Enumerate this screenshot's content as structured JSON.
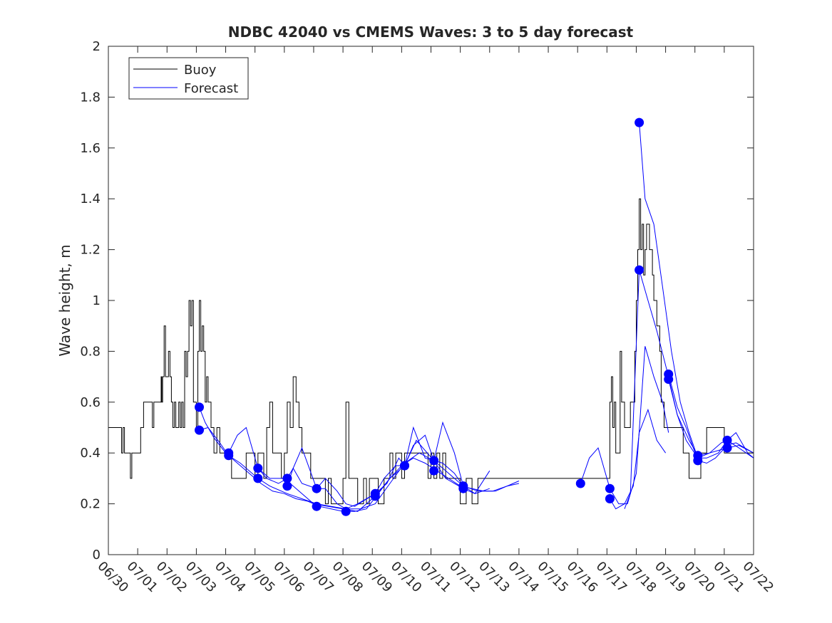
{
  "chart_data": {
    "type": "line",
    "title": "NDBC 42040 vs CMEMS Waves: 3 to 5 day forecast",
    "xlabel": "",
    "ylabel": "Wave height, m",
    "xlim": [
      "06/30",
      "07/22"
    ],
    "ylim": [
      0,
      2
    ],
    "x_tick_labels": [
      "06/30",
      "07/01",
      "07/02",
      "07/03",
      "07/04",
      "07/05",
      "07/06",
      "07/07",
      "07/08",
      "07/09",
      "07/10",
      "07/11",
      "07/12",
      "07/13",
      "07/14",
      "07/15",
      "07/16",
      "07/17",
      "07/18",
      "07/19",
      "07/20",
      "07/21",
      "07/22"
    ],
    "y_tick_labels": [
      "0",
      "0.2",
      "0.4",
      "0.6",
      "0.8",
      "1",
      "1.2",
      "1.4",
      "1.6",
      "1.8",
      "2"
    ],
    "y_ticks": [
      0,
      0.2,
      0.4,
      0.6,
      0.8,
      1,
      1.2,
      1.4,
      1.6,
      1.8,
      2
    ],
    "grid": false,
    "legend": {
      "placement": "top-left",
      "entries": [
        {
          "label": "Buoy",
          "color": "#000000"
        },
        {
          "label": "Forecast",
          "color": "#0000ff"
        }
      ]
    },
    "colors": {
      "buoy": "#000000",
      "forecast": "#0000ff",
      "axis": "#262626"
    },
    "x_unit": "days since 06/30 00:00 (x axis ticks at daily dates)",
    "series": [
      {
        "name": "Buoy",
        "color": "#000000",
        "x": [
          0,
          0.4,
          0.45,
          0.5,
          0.55,
          0.6,
          0.7,
          0.75,
          0.8,
          1.0,
          1.1,
          1.2,
          1.3,
          1.4,
          1.5,
          1.55,
          1.6,
          1.65,
          1.7,
          1.8,
          1.82,
          1.85,
          1.9,
          1.95,
          2.0,
          2.05,
          2.1,
          2.15,
          2.2,
          2.25,
          2.3,
          2.4,
          2.45,
          2.5,
          2.55,
          2.6,
          2.65,
          2.7,
          2.75,
          2.8,
          2.85,
          2.9,
          2.95,
          3.0,
          3.05,
          3.1,
          3.15,
          3.2,
          3.25,
          3.3,
          3.35,
          3.4,
          3.5,
          3.6,
          3.7,
          3.8,
          3.9,
          4.0,
          4.2,
          4.4,
          4.5,
          4.6,
          4.7,
          5.0,
          5.1,
          5.2,
          5.3,
          5.4,
          5.5,
          5.6,
          5.7,
          5.8,
          5.9,
          6.0,
          6.1,
          6.2,
          6.3,
          6.4,
          6.5,
          6.6,
          6.7,
          6.8,
          6.9,
          7.0,
          7.1,
          7.2,
          7.3,
          7.4,
          7.5,
          7.6,
          7.7,
          7.8,
          7.9,
          8.0,
          8.1,
          8.2,
          8.3,
          8.4,
          8.5,
          8.6,
          8.7,
          8.8,
          8.9,
          9.0,
          9.1,
          9.2,
          9.3,
          9.4,
          9.5,
          9.6,
          9.7,
          9.8,
          9.9,
          10.0,
          10.1,
          10.2,
          10.3,
          10.4,
          10.5,
          10.6,
          10.7,
          10.8,
          10.9,
          11.0,
          11.1,
          11.2,
          11.3,
          11.4,
          11.5,
          11.6,
          11.7,
          11.8,
          11.9,
          12.0,
          12.2,
          12.4,
          12.6,
          12.8,
          13.0,
          13.2,
          13.4,
          13.6,
          13.8,
          14.0,
          14.2,
          14.4,
          14.6,
          14.8,
          15.0,
          15.2,
          15.4,
          15.6,
          15.8,
          16.0,
          16.2,
          16.4,
          16.6,
          16.8,
          17.0,
          17.05,
          17.1,
          17.15,
          17.2,
          17.25,
          17.3,
          17.35,
          17.4,
          17.45,
          17.5,
          17.6,
          17.7,
          17.8,
          17.85,
          17.9,
          17.95,
          18.0,
          18.05,
          18.1,
          18.15,
          18.2,
          18.25,
          18.3,
          18.35,
          18.4,
          18.45,
          18.5,
          18.55,
          18.6,
          18.65,
          18.7,
          18.75,
          18.8,
          18.85,
          18.9,
          18.95,
          19.0,
          19.2,
          19.4,
          19.6,
          19.8,
          20.0,
          20.2,
          20.4,
          20.6,
          20.8,
          21.0,
          21.2,
          21.4,
          21.6,
          21.8,
          22.0
        ],
        "y": [
          0.5,
          0.5,
          0.4,
          0.5,
          0.4,
          0.4,
          0.4,
          0.3,
          0.4,
          0.4,
          0.5,
          0.6,
          0.6,
          0.6,
          0.5,
          0.6,
          0.6,
          0.6,
          0.6,
          0.7,
          0.6,
          0.7,
          0.9,
          0.7,
          0.7,
          0.8,
          0.7,
          0.6,
          0.5,
          0.6,
          0.5,
          0.6,
          0.5,
          0.6,
          0.5,
          0.8,
          0.7,
          0.8,
          1.0,
          0.9,
          1.0,
          0.6,
          0.6,
          0.5,
          0.8,
          1.0,
          0.8,
          0.9,
          0.8,
          0.6,
          0.7,
          0.6,
          0.5,
          0.4,
          0.5,
          0.4,
          0.4,
          0.4,
          0.3,
          0.3,
          0.3,
          0.3,
          0.4,
          0.3,
          0.4,
          0.4,
          0.3,
          0.5,
          0.6,
          0.4,
          0.4,
          0.4,
          0.3,
          0.4,
          0.6,
          0.5,
          0.7,
          0.6,
          0.5,
          0.4,
          0.4,
          0.4,
          0.3,
          0.3,
          0.3,
          0.3,
          0.3,
          0.2,
          0.3,
          0.2,
          0.2,
          0.2,
          0.2,
          0.3,
          0.6,
          0.3,
          0.3,
          0.3,
          0.2,
          0.2,
          0.3,
          0.2,
          0.3,
          0.3,
          0.3,
          0.2,
          0.2,
          0.3,
          0.3,
          0.4,
          0.3,
          0.4,
          0.4,
          0.3,
          0.4,
          0.4,
          0.4,
          0.4,
          0.4,
          0.4,
          0.4,
          0.4,
          0.3,
          0.4,
          0.3,
          0.4,
          0.3,
          0.4,
          0.3,
          0.3,
          0.3,
          0.3,
          0.3,
          0.2,
          0.3,
          0.2,
          0.3,
          0.3,
          0.3,
          0.3,
          0.3,
          0.3,
          0.3,
          0.3,
          0.3,
          0.3,
          0.3,
          0.3,
          0.3,
          0.3,
          0.3,
          0.3,
          0.3,
          0.3,
          0.3,
          0.3,
          0.3,
          0.3,
          0.3,
          0.3,
          0.6,
          0.7,
          0.5,
          0.6,
          0.4,
          0.4,
          0.4,
          0.8,
          0.6,
          0.5,
          0.5,
          0.6,
          0.6,
          0.6,
          0.8,
          1.0,
          1.2,
          1.4,
          1.2,
          1.3,
          1.1,
          1.2,
          1.3,
          1.3,
          1.2,
          1.2,
          1.1,
          1.0,
          1.0,
          0.9,
          0.9,
          0.8,
          0.6,
          0.6,
          0.5,
          0.5,
          0.5,
          0.5,
          0.4,
          0.3,
          0.3,
          0.4,
          0.5,
          0.5,
          0.5,
          0.4,
          0.4,
          0.4,
          0.4,
          0.4,
          0.4
        ]
      },
      {
        "name": "Forecast",
        "color": "#0000ff",
        "runs": [
          {
            "x": [
              3.1,
              3.3,
              3.6,
              4.0,
              4.4,
              4.8,
              5.2,
              5.6,
              6.0,
              6.4,
              6.8,
              7.2,
              7.6,
              8.0,
              8.4,
              8.8,
              9.2,
              9.6,
              10.0,
              10.4,
              10.8,
              11.2,
              11.6,
              12.0,
              12.4,
              12.8,
              13.2,
              13.6,
              14.0
            ],
            "y": [
              0.58,
              0.52,
              0.46,
              0.4,
              0.36,
              0.32,
              0.28,
              0.25,
              0.24,
              0.22,
              0.21,
              0.19,
              0.18,
              0.17,
              0.17,
              0.18,
              0.24,
              0.3,
              0.35,
              0.38,
              0.36,
              0.33,
              0.3,
              0.27,
              0.26,
              0.25,
              0.25,
              0.27,
              0.28
            ]
          },
          {
            "x": [
              3.1,
              3.4,
              3.8,
              4.1,
              4.5,
              5.1,
              5.5,
              6.1,
              6.6,
              7.1,
              7.6,
              8.1,
              8.6,
              9.1,
              9.6,
              10.1,
              10.6,
              11.1,
              11.6,
              12.1,
              12.6,
              13.1,
              13.6,
              14.0
            ],
            "y": [
              0.49,
              0.5,
              0.44,
              0.39,
              0.36,
              0.3,
              0.27,
              0.24,
              0.22,
              0.2,
              0.19,
              0.18,
              0.18,
              0.2,
              0.28,
              0.36,
              0.4,
              0.37,
              0.32,
              0.27,
              0.25,
              0.25,
              0.27,
              0.29
            ]
          },
          {
            "x": [
              4.1,
              4.4,
              4.7,
              5.1,
              5.5,
              6.0,
              6.5,
              7.0,
              7.5,
              8.0,
              8.5,
              9.1,
              9.6,
              10.1,
              10.5,
              11.1,
              11.5,
              12.1,
              12.5,
              13.0
            ],
            "y": [
              0.4,
              0.47,
              0.5,
              0.34,
              0.3,
              0.3,
              0.25,
              0.2,
              0.19,
              0.18,
              0.17,
              0.23,
              0.3,
              0.35,
              0.45,
              0.37,
              0.3,
              0.26,
              0.24,
              0.26
            ]
          },
          {
            "x": [
              5.1,
              5.4,
              5.8,
              6.1,
              6.3,
              6.6,
              7.1,
              7.4,
              7.8,
              8.1,
              8.4,
              9.1,
              9.4,
              9.8,
              10.1,
              10.4,
              10.8,
              11.1,
              11.4,
              11.8,
              12.1,
              12.5,
              13.0
            ],
            "y": [
              0.34,
              0.3,
              0.28,
              0.3,
              0.34,
              0.42,
              0.26,
              0.3,
              0.25,
              0.2,
              0.19,
              0.24,
              0.3,
              0.35,
              0.35,
              0.43,
              0.47,
              0.37,
              0.52,
              0.4,
              0.27,
              0.24,
              0.33
            ]
          },
          {
            "x": [
              6.1,
              6.3,
              6.6,
              7.1,
              7.4,
              7.8,
              8.1,
              8.5,
              9.1,
              9.5,
              9.9,
              10.1,
              10.4,
              10.8,
              11.1,
              11.4,
              11.8,
              12.1
            ],
            "y": [
              0.27,
              0.34,
              0.28,
              0.26,
              0.26,
              0.2,
              0.18,
              0.2,
              0.24,
              0.28,
              0.38,
              0.35,
              0.5,
              0.38,
              0.37,
              0.36,
              0.32,
              0.27
            ]
          },
          {
            "x": [
              16.1,
              16.4,
              16.7,
              17.1,
              17.4,
              17.7,
              18.0,
              18.3,
              18.6,
              18.9,
              19.1
            ],
            "y": [
              0.28,
              0.38,
              0.42,
              0.26,
              0.2,
              0.2,
              0.32,
              0.82,
              0.7,
              0.6,
              0.48
            ]
          },
          {
            "x": [
              17.1,
              17.3,
              17.6,
              17.9,
              18.1,
              18.4,
              18.7,
              19.0
            ],
            "y": [
              0.22,
              0.18,
              0.2,
              0.27,
              0.48,
              0.57,
              0.45,
              0.4
            ]
          },
          {
            "x": [
              17.6,
              17.8,
              18.1,
              18.4,
              18.7,
              19.1,
              19.4,
              19.7,
              20.1,
              20.4,
              20.8,
              21.1,
              21.5,
              22.0
            ],
            "y": [
              0.18,
              0.24,
              1.12,
              1.0,
              0.88,
              0.7,
              0.55,
              0.45,
              0.38,
              0.38,
              0.4,
              0.45,
              0.42,
              0.38
            ]
          },
          {
            "x": [
              18.1,
              18.3,
              18.6,
              18.9,
              19.2,
              19.5,
              19.8,
              20.1,
              20.5,
              20.9,
              21.1,
              21.4,
              21.8,
              22.0
            ],
            "y": [
              1.7,
              1.4,
              1.3,
              1.05,
              0.8,
              0.6,
              0.48,
              0.38,
              0.4,
              0.44,
              0.45,
              0.48,
              0.4,
              0.38
            ]
          },
          {
            "x": [
              19.1,
              19.4,
              19.7,
              20.1,
              20.4,
              20.7,
              21.1,
              21.4,
              21.7,
              22.0
            ],
            "y": [
              0.71,
              0.58,
              0.5,
              0.37,
              0.36,
              0.38,
              0.43,
              0.44,
              0.42,
              0.4
            ]
          },
          {
            "x": [
              19.1,
              19.4,
              19.8,
              20.1,
              20.5,
              20.8,
              21.1,
              21.5,
              22.0
            ],
            "y": [
              0.69,
              0.55,
              0.45,
              0.39,
              0.4,
              0.41,
              0.42,
              0.43,
              0.4
            ]
          }
        ],
        "markers": {
          "x": [
            3.1,
            3.1,
            4.1,
            4.1,
            5.1,
            5.1,
            6.1,
            6.1,
            7.1,
            7.1,
            8.1,
            9.1,
            9.1,
            10.1,
            10.1,
            11.1,
            11.1,
            12.1,
            12.1,
            16.1,
            17.1,
            17.1,
            18.1,
            18.1,
            19.1,
            19.1,
            20.1,
            20.1,
            21.1,
            21.1
          ],
          "y": [
            0.58,
            0.49,
            0.4,
            0.39,
            0.34,
            0.3,
            0.3,
            0.27,
            0.26,
            0.19,
            0.17,
            0.24,
            0.23,
            0.35,
            0.35,
            0.37,
            0.33,
            0.27,
            0.26,
            0.28,
            0.26,
            0.22,
            1.7,
            1.12,
            0.71,
            0.69,
            0.39,
            0.37,
            0.45,
            0.42
          ]
        }
      }
    ]
  }
}
